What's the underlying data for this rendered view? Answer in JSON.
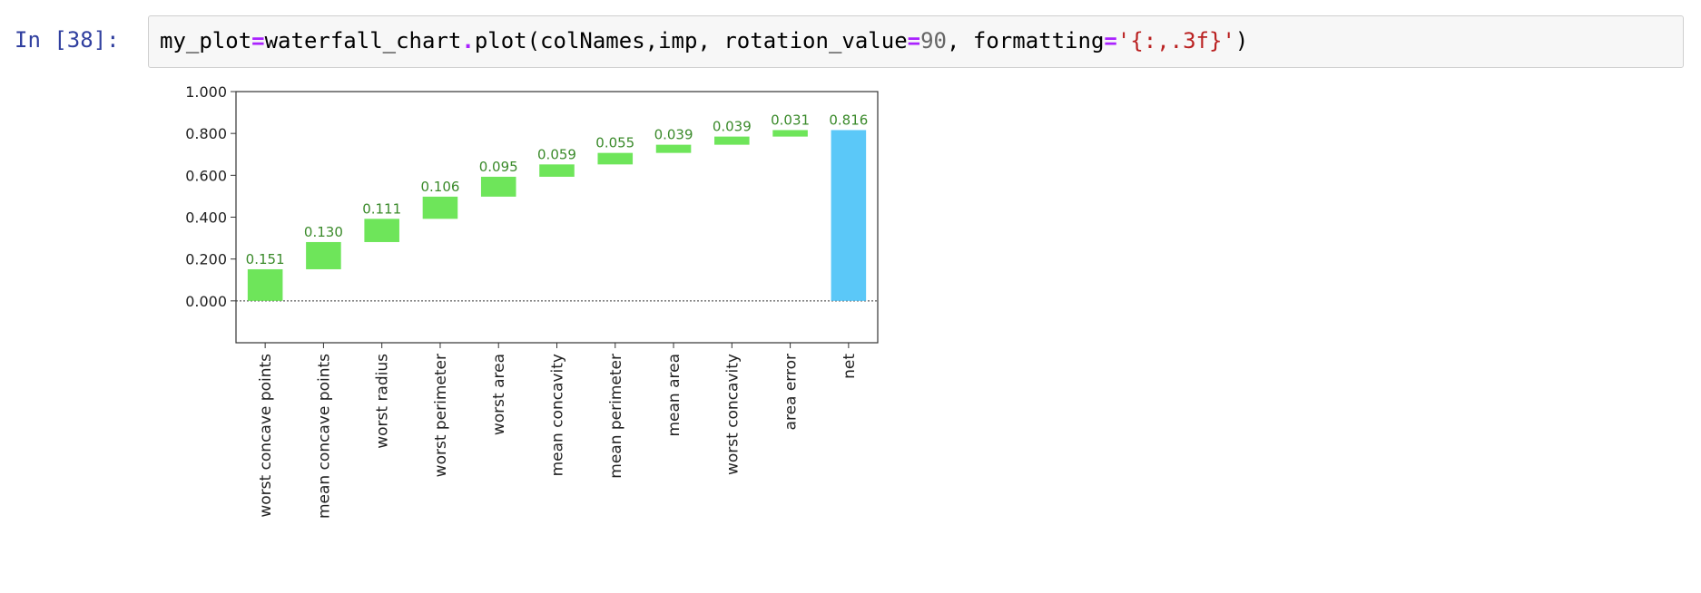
{
  "cell": {
    "prompt": "In [38]:",
    "code_tokens": [
      {
        "t": "my_plot",
        "c": "plain"
      },
      {
        "t": "=",
        "c": "op"
      },
      {
        "t": "waterfall_chart",
        "c": "plain"
      },
      {
        "t": ".",
        "c": "op"
      },
      {
        "t": "plot(colNames,imp, rotation_value",
        "c": "plain"
      },
      {
        "t": "=",
        "c": "op"
      },
      {
        "t": "90",
        "c": "num"
      },
      {
        "t": ", formatting",
        "c": "plain"
      },
      {
        "t": "=",
        "c": "op"
      },
      {
        "t": "'{:,.3f}'",
        "c": "str"
      },
      {
        "t": ")",
        "c": "plain"
      }
    ]
  },
  "chart_data": {
    "type": "bar",
    "subtype": "waterfall",
    "categories": [
      "worst concave points",
      "mean concave points",
      "worst radius",
      "worst perimeter",
      "worst area",
      "mean concavity",
      "mean perimeter",
      "mean area",
      "worst concavity",
      "area error",
      "net"
    ],
    "values": [
      0.151,
      0.13,
      0.111,
      0.106,
      0.095,
      0.059,
      0.055,
      0.039,
      0.039,
      0.031,
      0.816
    ],
    "data_labels": [
      "0.151",
      "0.130",
      "0.111",
      "0.106",
      "0.095",
      "0.059",
      "0.055",
      "0.039",
      "0.039",
      "0.031",
      "0.816"
    ],
    "yticks": [
      "1.000",
      "0.800",
      "0.600",
      "0.400",
      "0.200",
      "0.000"
    ],
    "ylim": [
      -0.2,
      1.0
    ],
    "title": "",
    "xlabel": "",
    "ylabel": "",
    "x_tick_rotation": 90,
    "grid": false,
    "colors": {
      "increase": "#6ee55a",
      "net": "#5bc8f8",
      "label": "#3a8a2a",
      "axis": "#333333"
    }
  }
}
